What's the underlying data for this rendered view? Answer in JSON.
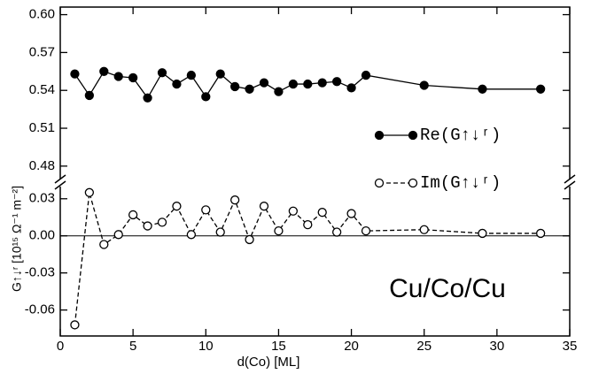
{
  "chart_data": [
    {
      "type": "line",
      "x": [
        1,
        2,
        3,
        4,
        5,
        6,
        7,
        8,
        9,
        10,
        11,
        12,
        13,
        14,
        15,
        16,
        17,
        18,
        19,
        20,
        21,
        25,
        29,
        33
      ],
      "series": [
        {
          "name": "Re(G↑↓ʳ)",
          "color": "#000000",
          "marker": "filled",
          "dash": "solid",
          "values": [
            0.553,
            0.536,
            0.555,
            0.551,
            0.55,
            0.534,
            0.554,
            0.545,
            0.552,
            0.535,
            0.553,
            0.543,
            0.541,
            0.546,
            0.539,
            0.545,
            0.545,
            0.546,
            0.547,
            0.542,
            0.552,
            0.544,
            0.541,
            0.541
          ]
        }
      ],
      "xlim": [
        0,
        35
      ],
      "ylim": [
        0.468,
        0.606
      ],
      "yticks": [
        0.48,
        0.51,
        0.54,
        0.57,
        {
          "value": 0.6,
          "label": "0.60"
        }
      ]
    },
    {
      "type": "line",
      "x": [
        1,
        2,
        3,
        4,
        5,
        6,
        7,
        8,
        9,
        10,
        11,
        12,
        13,
        14,
        15,
        16,
        17,
        18,
        19,
        20,
        21,
        25,
        29,
        33
      ],
      "series": [
        {
          "name": "Im(G↑↓ʳ)",
          "color": "#000000",
          "marker": "open",
          "dash": "dashed",
          "values": [
            -0.072,
            0.035,
            -0.007,
            0.001,
            0.017,
            0.008,
            0.011,
            0.024,
            0.001,
            0.021,
            0.003,
            0.029,
            -0.003,
            0.024,
            0.004,
            0.02,
            0.009,
            0.019,
            0.003,
            0.018,
            0.004,
            0.005,
            0.002,
            0.002
          ]
        }
      ],
      "xlabel": "d(Co) [ML]",
      "ylabel": "G↑↓ʳ [10¹⁵ Ω⁻¹ m⁻²]",
      "annotation": "Cu/Co/Cu",
      "xlim": [
        0,
        35
      ],
      "xticks": [
        0,
        5,
        10,
        15,
        20,
        25,
        30,
        35
      ],
      "ylim": [
        -0.081,
        0.042
      ],
      "yticks": [
        -0.06,
        -0.03,
        {
          "value": 0,
          "label": "0.00"
        },
        0.03
      ]
    }
  ]
}
